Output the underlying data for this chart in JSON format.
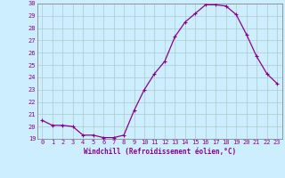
{
  "x": [
    0,
    1,
    2,
    3,
    4,
    5,
    6,
    7,
    8,
    9,
    10,
    11,
    12,
    13,
    14,
    15,
    16,
    17,
    18,
    19,
    20,
    21,
    22,
    23
  ],
  "y": [
    20.5,
    20.1,
    20.1,
    20.0,
    19.3,
    19.3,
    19.1,
    19.1,
    19.3,
    21.3,
    23.0,
    24.3,
    25.3,
    27.3,
    28.5,
    29.2,
    29.9,
    29.9,
    29.8,
    29.1,
    27.5,
    25.7,
    24.3,
    23.5
  ],
  "line_color": "#8b008b",
  "marker": "+",
  "marker_size": 3,
  "marker_linewidth": 0.8,
  "xlabel": "Windchill (Refroidissement éolien,°C)",
  "ylim": [
    19,
    30
  ],
  "yticks": [
    19,
    20,
    21,
    22,
    23,
    24,
    25,
    26,
    27,
    28,
    29,
    30
  ],
  "xticks": [
    0,
    1,
    2,
    3,
    4,
    5,
    6,
    7,
    8,
    9,
    10,
    11,
    12,
    13,
    14,
    15,
    16,
    17,
    18,
    19,
    20,
    21,
    22,
    23
  ],
  "background_color": "#cceeff",
  "grid_color": "#aacccc",
  "spine_color": "#888888",
  "tick_color": "#8b008b",
  "label_color": "#8b008b",
  "tick_fontsize": 5,
  "xlabel_fontsize": 5.5,
  "line_width": 0.9
}
